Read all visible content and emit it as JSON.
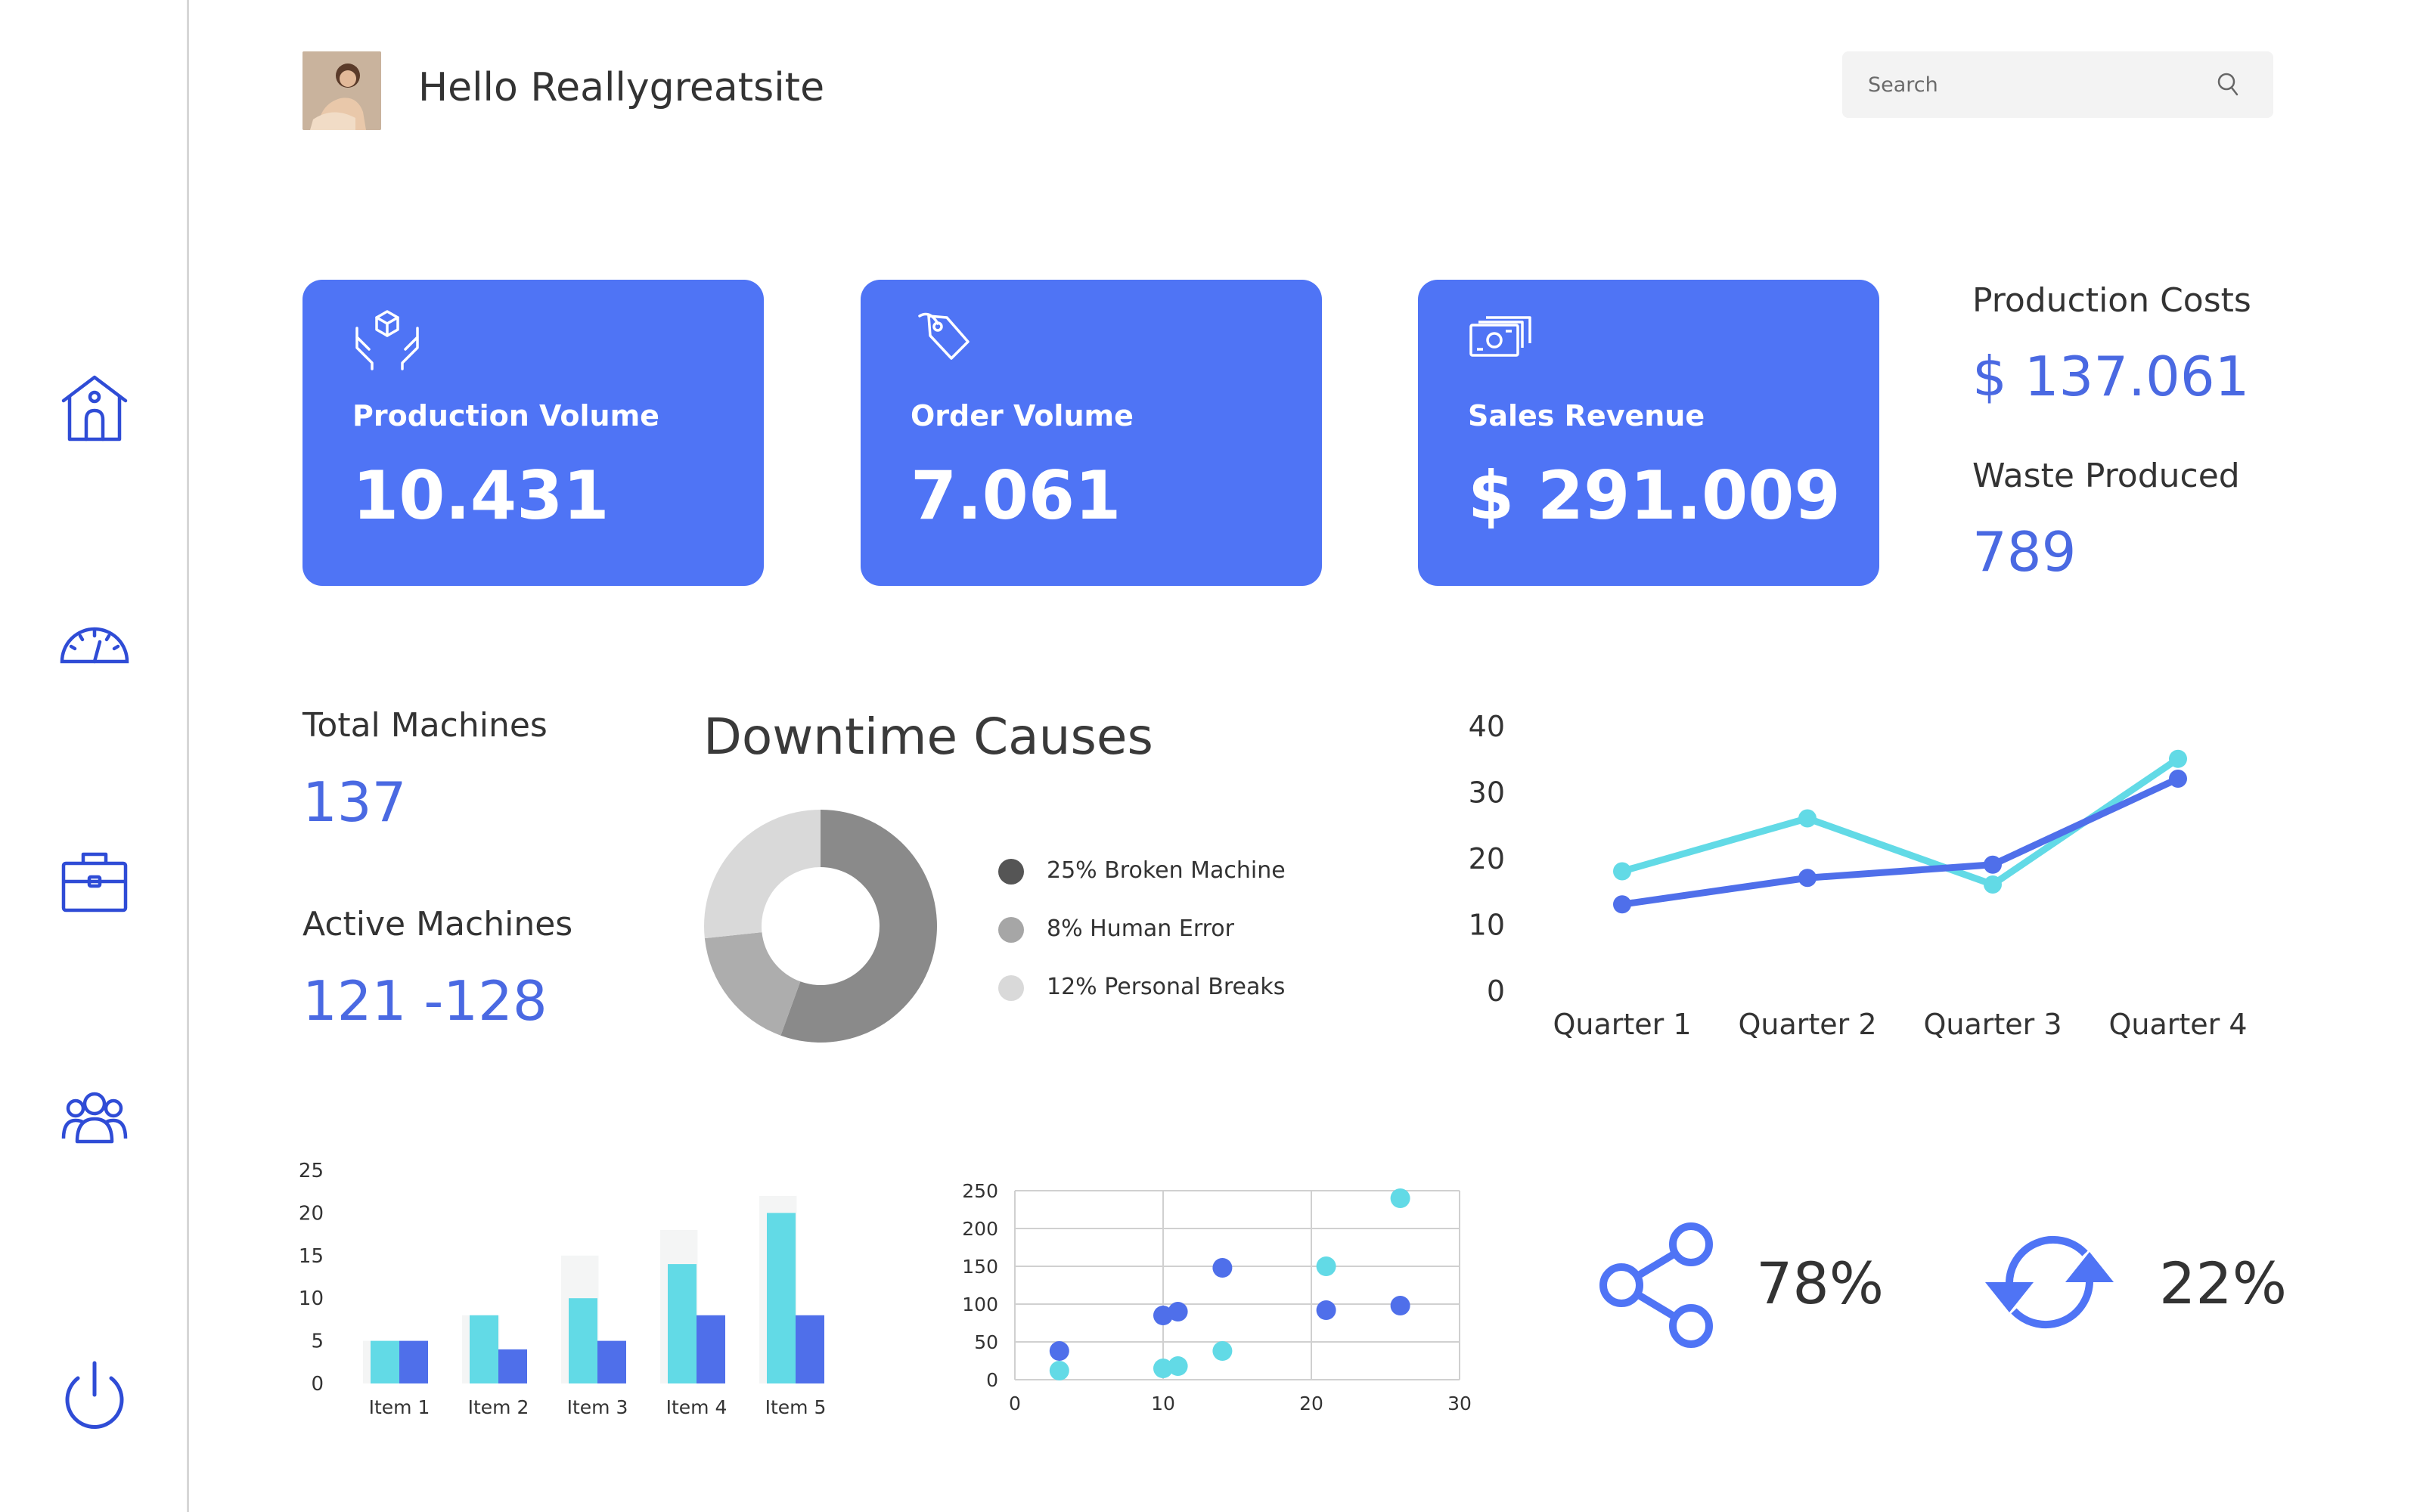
{
  "header": {
    "greeting": "Hello Reallygreatsite",
    "search_placeholder": "Search"
  },
  "sidebar": {
    "items": [
      {
        "icon": "home-icon"
      },
      {
        "icon": "dashboard-gauge-icon"
      },
      {
        "icon": "briefcase-icon"
      },
      {
        "icon": "team-icon"
      },
      {
        "icon": "power-icon"
      }
    ]
  },
  "cards": [
    {
      "label": "Production Volume",
      "value": "10.431",
      "icon": "hands-box-icon"
    },
    {
      "label": "Order Volume",
      "value": "7.061",
      "icon": "tag-icon"
    },
    {
      "label": "Sales Revenue",
      "value": "$ 291.009",
      "icon": "cash-icon"
    }
  ],
  "side_stats": {
    "production_costs_label": "Production Costs",
    "production_costs_value": "$ 137.061",
    "waste_label": "Waste Produced",
    "waste_value": "789"
  },
  "machines": {
    "total_label": "Total Machines",
    "total_value": "137",
    "active_label": "Active Machines",
    "active_value": "121 -128"
  },
  "downtime": {
    "title": "Downtime Causes",
    "legend": [
      {
        "label": "25% Broken Machine",
        "color": "#555555"
      },
      {
        "label": "8% Human Error",
        "color": "#a6a6a6"
      },
      {
        "label": "12% Personal Breaks",
        "color": "#d9d9d9"
      }
    ]
  },
  "metrics": {
    "share_value": "78%",
    "refresh_value": "22%",
    "icon_color": "#4f74f5"
  },
  "chart_data": [
    {
      "type": "pie",
      "categories": [
        "Broken Machine",
        "Human Error",
        "Personal Breaks"
      ],
      "values": [
        25,
        8,
        12
      ],
      "colors": [
        "#8a8a8a",
        "#adadad",
        "#d9d9d9"
      ],
      "title": ""
    },
    {
      "type": "line",
      "categories": [
        "Quarter 1",
        "Quarter 2",
        "Quarter 3",
        "Quarter 4"
      ],
      "yticks": [
        0,
        10,
        20,
        30,
        40
      ],
      "ylim": [
        0,
        40
      ],
      "series": [
        {
          "values": [
            18,
            26,
            16,
            35
          ],
          "color": "#62dae6"
        },
        {
          "values": [
            13,
            17,
            19,
            32
          ],
          "color": "#4f6fea"
        }
      ],
      "grid": false,
      "title": ""
    },
    {
      "type": "bar",
      "categories": [
        "Item 1",
        "Item 2",
        "Item 3",
        "Item 4",
        "Item 5"
      ],
      "yticks": [
        0,
        5,
        10,
        15,
        20,
        25
      ],
      "ylim": [
        0,
        25
      ],
      "series": [
        {
          "values": [
            5,
            8,
            15,
            18,
            22
          ],
          "color": "#f4f5f5"
        },
        {
          "values": [
            5,
            8,
            10,
            14,
            20
          ],
          "color": "#62dae6"
        },
        {
          "values": [
            5,
            4,
            5,
            8,
            8
          ],
          "color": "#4f6fea"
        }
      ],
      "title": ""
    },
    {
      "type": "scatter",
      "xticks": [
        0,
        10,
        20,
        30
      ],
      "yticks": [
        0,
        50,
        100,
        150,
        200,
        250
      ],
      "xlim": [
        0,
        30
      ],
      "ylim": [
        0,
        250
      ],
      "grid": true,
      "series": [
        {
          "color": "#62dae6",
          "points": [
            [
              3,
              12
            ],
            [
              10,
              15
            ],
            [
              11,
              18
            ],
            [
              14,
              38
            ],
            [
              21,
              150
            ],
            [
              26,
              240
            ]
          ]
        },
        {
          "color": "#4f6fea",
          "points": [
            [
              3,
              38
            ],
            [
              10,
              85
            ],
            [
              11,
              90
            ],
            [
              14,
              148
            ],
            [
              21,
              92
            ],
            [
              26,
              98
            ]
          ]
        }
      ],
      "title": ""
    }
  ]
}
